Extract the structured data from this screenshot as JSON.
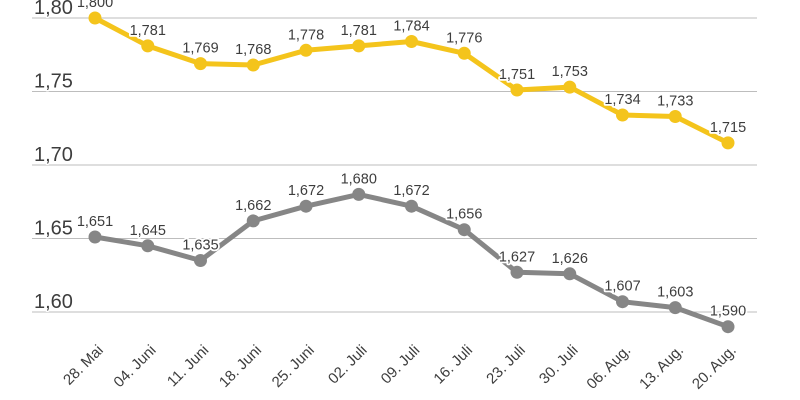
{
  "chart_data": {
    "type": "line",
    "categories": [
      "28. Mai",
      "04. Juni",
      "11. Juni",
      "18. Juni",
      "25. Juni",
      "02. Juli",
      "09. Juli",
      "16. Juli",
      "23. Juli",
      "30. Juli",
      "06. Aug.",
      "13. Aug.",
      "20. Aug."
    ],
    "series": [
      {
        "id": "upper-yellow-line",
        "color": "#F4C41C",
        "values": [
          1.8,
          1.781,
          1.769,
          1.768,
          1.778,
          1.781,
          1.784,
          1.776,
          1.751,
          1.753,
          1.734,
          1.733,
          1.715
        ],
        "labels": [
          "1,800",
          "1,781",
          "1,769",
          "1,768",
          "1,778",
          "1,781",
          "1,784",
          "1,776",
          "1,751",
          "1,753",
          "1,734",
          "1,733",
          "1,715"
        ]
      },
      {
        "id": "lower-gray-line",
        "color": "#868686",
        "values": [
          1.651,
          1.645,
          1.635,
          1.662,
          1.672,
          1.68,
          1.672,
          1.656,
          1.627,
          1.626,
          1.607,
          1.603,
          1.59
        ],
        "labels": [
          "1,651",
          "1,645",
          "1,635",
          "1,662",
          "1,672",
          "1,680",
          "1,672",
          "1,656",
          "1,627",
          "1,626",
          "1,607",
          "1,603",
          "1,590"
        ]
      }
    ],
    "y_axis": {
      "tick_labels": [
        "1,80",
        "1,75",
        "1,70",
        "1,65",
        "1,60"
      ],
      "tick_values": [
        1.8,
        1.75,
        1.7,
        1.65,
        1.6
      ],
      "grid": true,
      "decimal_separator": ","
    },
    "x_axis": {
      "tick_rotation_deg": -45
    },
    "legend": "none",
    "title": "",
    "colors": {
      "grid": "#BDBDBD",
      "text": "#3D3D3D",
      "background": "#FFFFFF"
    }
  }
}
